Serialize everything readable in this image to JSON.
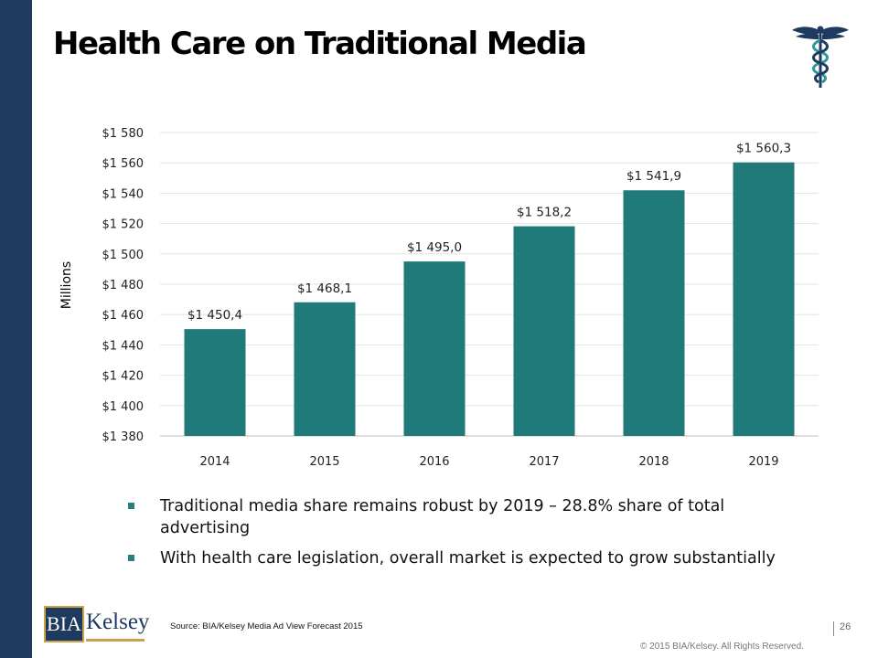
{
  "slide": {
    "title": "Health Care on Traditional Media",
    "bullets": [
      "Traditional media share remains robust by 2019 – 28.8% share of total advertising",
      "With health care legislation, overall market is expected to grow substantially"
    ],
    "source": "Source: BIA/Kelsey Media Ad View Forecast 2015",
    "page_number": "26",
    "copyright": "© 2015 BIA/Kelsey. All Rights Reserved.",
    "logo": {
      "left": "BIA",
      "right": "Kelsey"
    },
    "icons": {
      "header": "caduceus-icon"
    }
  },
  "colors": {
    "bar": "#217a7a",
    "left_bar": "#1f3a5f",
    "accent": "#c9a34a",
    "bullet": "#2a7f7f"
  },
  "chart_data": {
    "type": "bar",
    "categories": [
      "2014",
      "2015",
      "2016",
      "2017",
      "2018",
      "2019"
    ],
    "values": [
      1450.4,
      1468.1,
      1495.0,
      1518.2,
      1541.9,
      1560.3
    ],
    "value_labels": [
      "$1 450,4",
      "$1 468,1",
      "$1 495,0",
      "$1 518,2",
      "$1 541,9",
      "$1 560,3"
    ],
    "ylim": [
      1380,
      1580
    ],
    "ytick_labels": [
      "$1 380",
      "$1 400",
      "$1 420",
      "$1 440",
      "$1 460",
      "$1 480",
      "$1 500",
      "$1 520",
      "$1 540",
      "$1 560",
      "$1 580"
    ],
    "ylabel": "Millions",
    "xlabel": "",
    "title": "",
    "grid": true,
    "legend": "none"
  }
}
